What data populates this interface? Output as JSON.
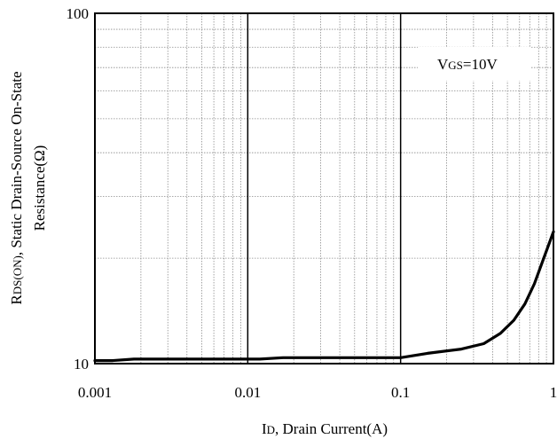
{
  "chart_data": {
    "type": "line",
    "x_scale": "log",
    "y_scale": "log",
    "xlim": [
      0.001,
      1
    ],
    "ylim": [
      10,
      100
    ],
    "x_ticks": [
      {
        "value": 0.001,
        "label": "0.001"
      },
      {
        "value": 0.01,
        "label": "0.01"
      },
      {
        "value": 0.1,
        "label": "0.1"
      },
      {
        "value": 1,
        "label": "1"
      }
    ],
    "y_ticks": [
      {
        "value": 10,
        "label": "10"
      },
      {
        "value": 100,
        "label": "100"
      }
    ],
    "xlabel": {
      "main": "I",
      "sub": "D",
      "rest": ", Drain Current(A)"
    },
    "ylabel": {
      "line1_main": "R",
      "line1_sub": "DS(ON)",
      "line1_rest": ", Static Drain-Source On-State",
      "line2": "Resistance(Ω)"
    },
    "annotation": {
      "main": "V",
      "sub": "GS",
      "rest": "=10V"
    },
    "grid": true,
    "series": [
      {
        "x": [
          0.001,
          0.0013,
          0.0018,
          0.003,
          0.006,
          0.012,
          0.017,
          0.03,
          0.06,
          0.1,
          0.15,
          0.25,
          0.35,
          0.45,
          0.55,
          0.65,
          0.75,
          0.85,
          1.0
        ],
        "y": [
          10.2,
          10.2,
          10.3,
          10.3,
          10.3,
          10.3,
          10.4,
          10.4,
          10.4,
          10.4,
          10.7,
          11.0,
          11.4,
          12.2,
          13.3,
          14.8,
          16.9,
          19.6,
          23.8
        ]
      }
    ]
  }
}
